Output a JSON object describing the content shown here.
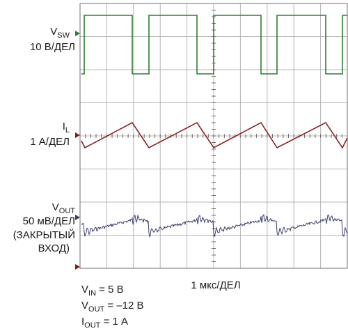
{
  "channels": [
    {
      "symbol": "V",
      "subscript": "SW",
      "scale": [
        "10 В/ДЕЛ"
      ]
    },
    {
      "symbol": "I",
      "subscript": "L",
      "scale": [
        "1 А/ДЕЛ"
      ]
    },
    {
      "symbol": "V",
      "subscript": "OUT",
      "scale": [
        "50 мВ/ДЕЛ",
        "(ЗАКРЫТЫЙ",
        "ВХОД)"
      ]
    }
  ],
  "timebase": "1 мкс/ДЕЛ",
  "conditions": [
    {
      "symbol": "V",
      "subscript": "IN",
      "text": " = 5 В"
    },
    {
      "symbol": "V",
      "subscript": "OUT",
      "text": " = –12 В"
    },
    {
      "symbol": "I",
      "subscript": "OUT",
      "text": " = 1 А"
    }
  ]
}
